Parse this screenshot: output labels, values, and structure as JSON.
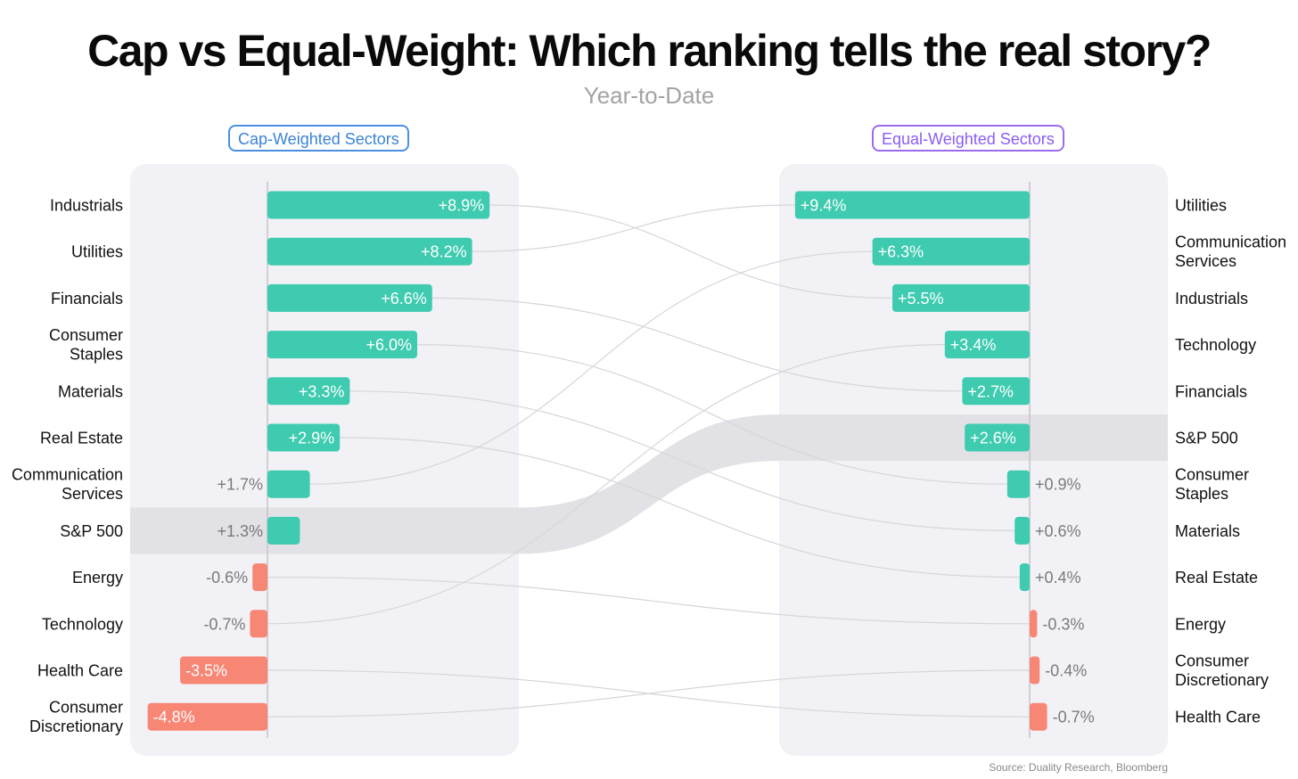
{
  "title": "Cap vs Equal-Weight: Which ranking tells the real story?",
  "subtitle": "Year-to-Date",
  "source": "Source: Duality Research, Bloomberg",
  "colors": {
    "positive": "#3ecbb0",
    "negative": "#f88675",
    "highlight_band": "#e2e2e6",
    "panel_bg": "#f2f2f6",
    "cap_accent": "#4a90e2",
    "eq_accent": "#9b6cf0"
  },
  "chart_data": [
    {
      "type": "bar",
      "orientation": "horizontal",
      "panel_label": "Cap-Weighted Sectors",
      "categories": [
        "Industrials",
        "Utilities",
        "Financials",
        "Consumer Staples",
        "Materials",
        "Real Estate",
        "Communication Services",
        "S&P 500",
        "Energy",
        "Technology",
        "Health Care",
        "Consumer Discretionary"
      ],
      "category_lines": [
        [
          "Industrials"
        ],
        [
          "Utilities"
        ],
        [
          "Financials"
        ],
        [
          "Consumer",
          "Staples"
        ],
        [
          "Materials"
        ],
        [
          "Real Estate"
        ],
        [
          "Communication",
          "Services"
        ],
        [
          "S&P 500"
        ],
        [
          "Energy"
        ],
        [
          "Technology"
        ],
        [
          "Health Care"
        ],
        [
          "Consumer",
          "Discretionary"
        ]
      ],
      "values": [
        8.9,
        8.2,
        6.6,
        6.0,
        3.3,
        2.9,
        1.7,
        1.3,
        -0.6,
        -0.7,
        -3.5,
        -4.8
      ],
      "value_labels": [
        "+8.9%",
        "+8.2%",
        "+6.6%",
        "+6.0%",
        "+3.3%",
        "+2.9%",
        "+1.7%",
        "+1.3%",
        "-0.6%",
        "-0.7%",
        "-3.5%",
        "-4.8%"
      ],
      "highlight": "S&P 500"
    },
    {
      "type": "bar",
      "orientation": "horizontal",
      "panel_label": "Equal-Weighted Sectors",
      "categories": [
        "Utilities",
        "Communication Services",
        "Industrials",
        "Technology",
        "Financials",
        "S&P 500",
        "Consumer Staples",
        "Materials",
        "Real Estate",
        "Energy",
        "Consumer Discretionary",
        "Health Care"
      ],
      "category_lines": [
        [
          "Utilities"
        ],
        [
          "Communication",
          "Services"
        ],
        [
          "Industrials"
        ],
        [
          "Technology"
        ],
        [
          "Financials"
        ],
        [
          "S&P 500"
        ],
        [
          "Consumer",
          "Staples"
        ],
        [
          "Materials"
        ],
        [
          "Real Estate"
        ],
        [
          "Energy"
        ],
        [
          "Consumer",
          "Discretionary"
        ],
        [
          "Health Care"
        ]
      ],
      "values": [
        9.4,
        6.3,
        5.5,
        3.4,
        2.7,
        2.6,
        0.9,
        0.6,
        0.4,
        -0.3,
        -0.4,
        -0.7
      ],
      "value_labels": [
        "+9.4%",
        "+6.3%",
        "+5.5%",
        "+3.4%",
        "+2.7%",
        "+2.6%",
        "+0.9%",
        "+0.6%",
        "+0.4%",
        "-0.3%",
        "-0.4%",
        "-0.7%"
      ],
      "highlight": "S&P 500"
    }
  ]
}
